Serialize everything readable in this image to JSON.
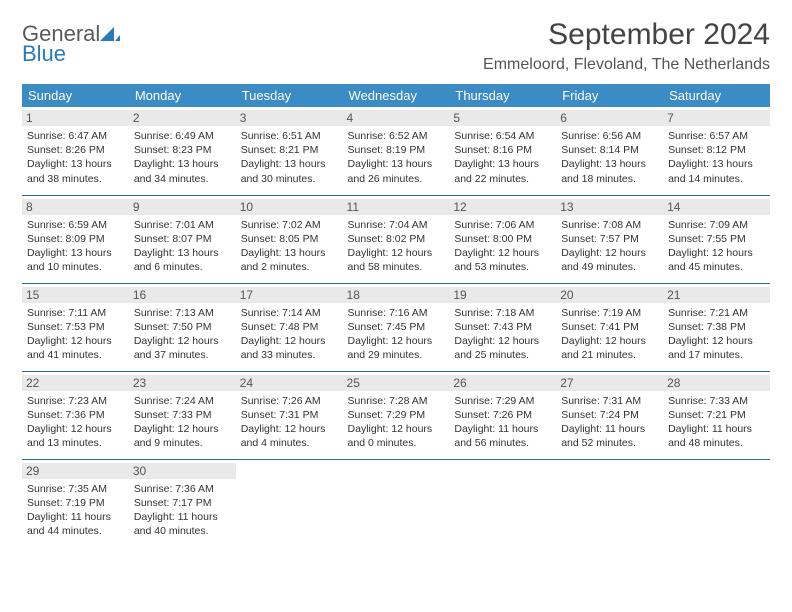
{
  "brand": {
    "part1": "General",
    "part2": "Blue"
  },
  "title": "September 2024",
  "location": "Emmeloord, Flevoland, The Netherlands",
  "colors": {
    "header_bg": "#3b8bc4",
    "header_text": "#ffffff",
    "row_border": "#2a6a9a",
    "daynum_bg": "#e9e9e9",
    "logo_gray": "#5a5a5a",
    "logo_blue": "#2a7ab8"
  },
  "weekdays": [
    "Sunday",
    "Monday",
    "Tuesday",
    "Wednesday",
    "Thursday",
    "Friday",
    "Saturday"
  ],
  "weeks": [
    [
      {
        "n": "1",
        "sr": "Sunrise: 6:47 AM",
        "ss": "Sunset: 8:26 PM",
        "d1": "Daylight: 13 hours",
        "d2": "and 38 minutes."
      },
      {
        "n": "2",
        "sr": "Sunrise: 6:49 AM",
        "ss": "Sunset: 8:23 PM",
        "d1": "Daylight: 13 hours",
        "d2": "and 34 minutes."
      },
      {
        "n": "3",
        "sr": "Sunrise: 6:51 AM",
        "ss": "Sunset: 8:21 PM",
        "d1": "Daylight: 13 hours",
        "d2": "and 30 minutes."
      },
      {
        "n": "4",
        "sr": "Sunrise: 6:52 AM",
        "ss": "Sunset: 8:19 PM",
        "d1": "Daylight: 13 hours",
        "d2": "and 26 minutes."
      },
      {
        "n": "5",
        "sr": "Sunrise: 6:54 AM",
        "ss": "Sunset: 8:16 PM",
        "d1": "Daylight: 13 hours",
        "d2": "and 22 minutes."
      },
      {
        "n": "6",
        "sr": "Sunrise: 6:56 AM",
        "ss": "Sunset: 8:14 PM",
        "d1": "Daylight: 13 hours",
        "d2": "and 18 minutes."
      },
      {
        "n": "7",
        "sr": "Sunrise: 6:57 AM",
        "ss": "Sunset: 8:12 PM",
        "d1": "Daylight: 13 hours",
        "d2": "and 14 minutes."
      }
    ],
    [
      {
        "n": "8",
        "sr": "Sunrise: 6:59 AM",
        "ss": "Sunset: 8:09 PM",
        "d1": "Daylight: 13 hours",
        "d2": "and 10 minutes."
      },
      {
        "n": "9",
        "sr": "Sunrise: 7:01 AM",
        "ss": "Sunset: 8:07 PM",
        "d1": "Daylight: 13 hours",
        "d2": "and 6 minutes."
      },
      {
        "n": "10",
        "sr": "Sunrise: 7:02 AM",
        "ss": "Sunset: 8:05 PM",
        "d1": "Daylight: 13 hours",
        "d2": "and 2 minutes."
      },
      {
        "n": "11",
        "sr": "Sunrise: 7:04 AM",
        "ss": "Sunset: 8:02 PM",
        "d1": "Daylight: 12 hours",
        "d2": "and 58 minutes."
      },
      {
        "n": "12",
        "sr": "Sunrise: 7:06 AM",
        "ss": "Sunset: 8:00 PM",
        "d1": "Daylight: 12 hours",
        "d2": "and 53 minutes."
      },
      {
        "n": "13",
        "sr": "Sunrise: 7:08 AM",
        "ss": "Sunset: 7:57 PM",
        "d1": "Daylight: 12 hours",
        "d2": "and 49 minutes."
      },
      {
        "n": "14",
        "sr": "Sunrise: 7:09 AM",
        "ss": "Sunset: 7:55 PM",
        "d1": "Daylight: 12 hours",
        "d2": "and 45 minutes."
      }
    ],
    [
      {
        "n": "15",
        "sr": "Sunrise: 7:11 AM",
        "ss": "Sunset: 7:53 PM",
        "d1": "Daylight: 12 hours",
        "d2": "and 41 minutes."
      },
      {
        "n": "16",
        "sr": "Sunrise: 7:13 AM",
        "ss": "Sunset: 7:50 PM",
        "d1": "Daylight: 12 hours",
        "d2": "and 37 minutes."
      },
      {
        "n": "17",
        "sr": "Sunrise: 7:14 AM",
        "ss": "Sunset: 7:48 PM",
        "d1": "Daylight: 12 hours",
        "d2": "and 33 minutes."
      },
      {
        "n": "18",
        "sr": "Sunrise: 7:16 AM",
        "ss": "Sunset: 7:45 PM",
        "d1": "Daylight: 12 hours",
        "d2": "and 29 minutes."
      },
      {
        "n": "19",
        "sr": "Sunrise: 7:18 AM",
        "ss": "Sunset: 7:43 PM",
        "d1": "Daylight: 12 hours",
        "d2": "and 25 minutes."
      },
      {
        "n": "20",
        "sr": "Sunrise: 7:19 AM",
        "ss": "Sunset: 7:41 PM",
        "d1": "Daylight: 12 hours",
        "d2": "and 21 minutes."
      },
      {
        "n": "21",
        "sr": "Sunrise: 7:21 AM",
        "ss": "Sunset: 7:38 PM",
        "d1": "Daylight: 12 hours",
        "d2": "and 17 minutes."
      }
    ],
    [
      {
        "n": "22",
        "sr": "Sunrise: 7:23 AM",
        "ss": "Sunset: 7:36 PM",
        "d1": "Daylight: 12 hours",
        "d2": "and 13 minutes."
      },
      {
        "n": "23",
        "sr": "Sunrise: 7:24 AM",
        "ss": "Sunset: 7:33 PM",
        "d1": "Daylight: 12 hours",
        "d2": "and 9 minutes."
      },
      {
        "n": "24",
        "sr": "Sunrise: 7:26 AM",
        "ss": "Sunset: 7:31 PM",
        "d1": "Daylight: 12 hours",
        "d2": "and 4 minutes."
      },
      {
        "n": "25",
        "sr": "Sunrise: 7:28 AM",
        "ss": "Sunset: 7:29 PM",
        "d1": "Daylight: 12 hours",
        "d2": "and 0 minutes."
      },
      {
        "n": "26",
        "sr": "Sunrise: 7:29 AM",
        "ss": "Sunset: 7:26 PM",
        "d1": "Daylight: 11 hours",
        "d2": "and 56 minutes."
      },
      {
        "n": "27",
        "sr": "Sunrise: 7:31 AM",
        "ss": "Sunset: 7:24 PM",
        "d1": "Daylight: 11 hours",
        "d2": "and 52 minutes."
      },
      {
        "n": "28",
        "sr": "Sunrise: 7:33 AM",
        "ss": "Sunset: 7:21 PM",
        "d1": "Daylight: 11 hours",
        "d2": "and 48 minutes."
      }
    ],
    [
      {
        "n": "29",
        "sr": "Sunrise: 7:35 AM",
        "ss": "Sunset: 7:19 PM",
        "d1": "Daylight: 11 hours",
        "d2": "and 44 minutes."
      },
      {
        "n": "30",
        "sr": "Sunrise: 7:36 AM",
        "ss": "Sunset: 7:17 PM",
        "d1": "Daylight: 11 hours",
        "d2": "and 40 minutes."
      },
      null,
      null,
      null,
      null,
      null
    ]
  ]
}
